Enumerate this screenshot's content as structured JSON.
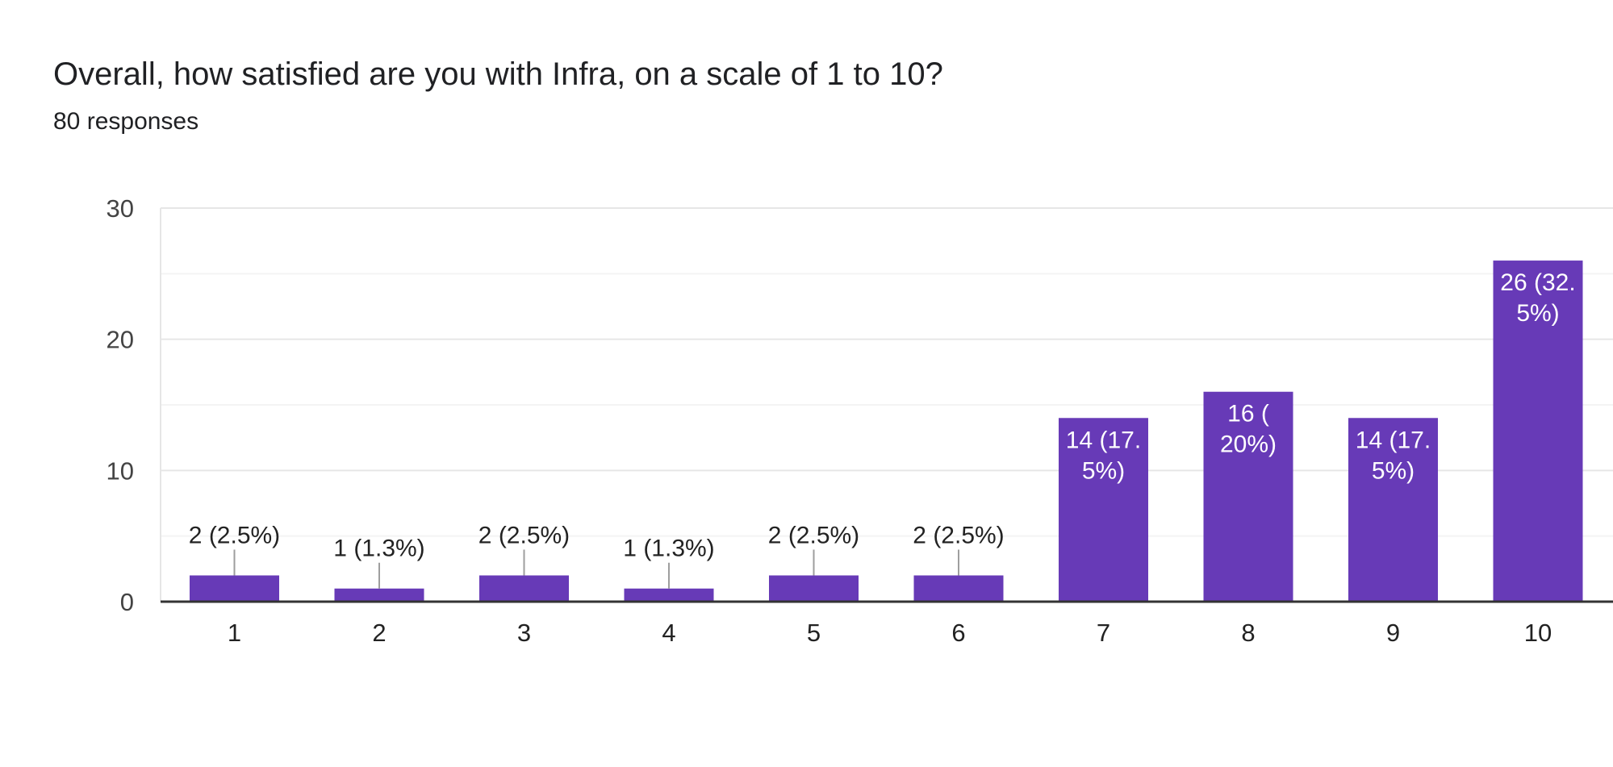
{
  "header": {
    "title": "Overall, how satisfied are you with Infra, on a scale of 1 to 10?",
    "subtitle": "80 responses"
  },
  "chart_data": {
    "type": "bar",
    "categories": [
      "1",
      "2",
      "3",
      "4",
      "5",
      "6",
      "7",
      "8",
      "9",
      "10"
    ],
    "values": [
      2,
      1,
      2,
      1,
      2,
      2,
      14,
      16,
      14,
      26
    ],
    "data_labels": [
      [
        "2 (2.5%)"
      ],
      [
        "1 (1.3%)"
      ],
      [
        "2 (2.5%)"
      ],
      [
        "1 (1.3%)"
      ],
      [
        "2 (2.5%)"
      ],
      [
        "2 (2.5%)"
      ],
      [
        "14 (17.",
        "5%)"
      ],
      [
        "16 (",
        "20%)"
      ],
      [
        "14 (17.",
        "5%)"
      ],
      [
        "26 (32.",
        "5%)"
      ]
    ],
    "yticks": [
      0,
      10,
      20,
      30
    ],
    "ylim": [
      0,
      30
    ],
    "grid": true,
    "colors": {
      "bar": "#673ab7",
      "grid_major": "#e6e6e6",
      "grid_minor": "#f4f4f4",
      "axis": "#333333",
      "leader": "#9e9e9e"
    }
  }
}
